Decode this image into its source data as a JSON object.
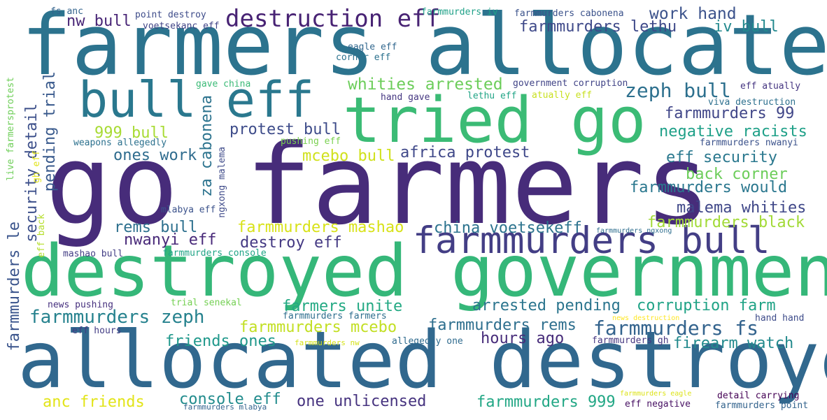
{
  "words": [
    {
      "text": "farmers allocated",
      "color": "#2c738e"
    },
    {
      "text": "go farmers",
      "color": "#472c7a"
    },
    {
      "text": "tried go",
      "color": "#3bbb75"
    },
    {
      "text": "destroyed government",
      "color": "#35b779"
    },
    {
      "text": "allocated destroyed",
      "color": "#31688e"
    },
    {
      "text": "bull eff",
      "color": "#2a788e"
    },
    {
      "text": "farmmurders bull",
      "color": "#433e85"
    },
    {
      "text": "destruction eff",
      "color": "#482374"
    },
    {
      "text": "zeph bull",
      "color": "#2d708e"
    },
    {
      "text": "work hand",
      "color": "#3b528b"
    },
    {
      "text": "farmmurders lethu",
      "color": "#3e4989"
    },
    {
      "text": "iv bull",
      "color": "#23898e"
    },
    {
      "text": "nw bull",
      "color": "#482576"
    },
    {
      "text": "whities arrested",
      "color": "#6ccd5a"
    },
    {
      "text": "farmmurders 99",
      "color": "#404688"
    },
    {
      "text": "negative racists",
      "color": "#1fa088"
    },
    {
      "text": "protest bull",
      "color": "#3e4c8a"
    },
    {
      "text": "999 bull",
      "color": "#a8db34"
    },
    {
      "text": "pending trial",
      "color": "#38598c"
    },
    {
      "text": "security detail",
      "color": "#3c4f8a"
    },
    {
      "text": "za cabonena",
      "color": "#2c738e"
    },
    {
      "text": "africa protest",
      "color": "#3f4889"
    },
    {
      "text": "ones work",
      "color": "#2f6c8e"
    },
    {
      "text": "mcebo bull",
      "color": "#d0e11c"
    },
    {
      "text": "eff security",
      "color": "#2a788e"
    },
    {
      "text": "back corner",
      "color": "#6ccd5a"
    },
    {
      "text": "farmmurders would",
      "color": "#2a778e"
    },
    {
      "text": "malema whities",
      "color": "#3f4788"
    },
    {
      "text": "farmmurders black",
      "color": "#a2da37"
    },
    {
      "text": "farmmurders le",
      "color": "#3a548c"
    },
    {
      "text": "rems bull",
      "color": "#2d708e"
    },
    {
      "text": "farmmurders mashao",
      "color": "#d8e219"
    },
    {
      "text": "china voetsekeff",
      "color": "#2c738e"
    },
    {
      "text": "nwanyi eff",
      "color": "#482979"
    },
    {
      "text": "destroy eff",
      "color": "#443983"
    },
    {
      "text": "farmmurders zeph",
      "color": "#26828e"
    },
    {
      "text": "farmers unite",
      "color": "#23a983"
    },
    {
      "text": "arrested pending",
      "color": "#2b758e"
    },
    {
      "text": "corruption farm",
      "color": "#20a386"
    },
    {
      "text": "farmmurders mcebo",
      "color": "#c2df23"
    },
    {
      "text": "farmmurders rems",
      "color": "#2e6f8e"
    },
    {
      "text": "farmmurders fs",
      "color": "#33638d"
    },
    {
      "text": "friends ones",
      "color": "#1f988b"
    },
    {
      "text": "hours ago",
      "color": "#472c7a"
    },
    {
      "text": "firearm watch",
      "color": "#238a8d"
    },
    {
      "text": "anc friends",
      "color": "#e2e418"
    },
    {
      "text": "console eff",
      "color": "#228c8d"
    },
    {
      "text": "one unlicensed",
      "color": "#46337f"
    },
    {
      "text": "farmmurders 999",
      "color": "#22a785"
    },
    {
      "text": "fs anc",
      "color": "#33638d"
    },
    {
      "text": "point destroy",
      "color": "#3e4c8a"
    },
    {
      "text": "voetsekanc eff",
      "color": "#414487"
    },
    {
      "text": "farmmurders iv",
      "color": "#1fa188"
    },
    {
      "text": "farmmurders cabonena",
      "color": "#3b528b"
    },
    {
      "text": "eagle eff",
      "color": "#31678e"
    },
    {
      "text": "corner eff",
      "color": "#2c728e"
    },
    {
      "text": "gave china",
      "color": "#3aba76"
    },
    {
      "text": "hand gave",
      "color": "#453781"
    },
    {
      "text": "lethu eff",
      "color": "#20a486"
    },
    {
      "text": "atually eff",
      "color": "#c8e020"
    },
    {
      "text": "government corruption",
      "color": "#414487"
    },
    {
      "text": "eff atually",
      "color": "#453581"
    },
    {
      "text": "viva destruction",
      "color": "#2d708e"
    },
    {
      "text": "farmmurders nwanyi",
      "color": "#3b528b"
    },
    {
      "text": "weapons allegedly",
      "color": "#2c718e"
    },
    {
      "text": "pushing eff",
      "color": "#7ad151"
    },
    {
      "text": "ngxong malema",
      "color": "#3e4a89"
    },
    {
      "text": "live farmersprotest",
      "color": "#6ece58"
    },
    {
      "text": "gh eff",
      "color": "#e1e418"
    },
    {
      "text": "eff back",
      "color": "#b5de2b"
    },
    {
      "text": "mlabya eff",
      "color": "#3b528b"
    },
    {
      "text": "farmmurders ngxong",
      "color": "#2e6e8e"
    },
    {
      "text": "mashao bull",
      "color": "#433e85"
    },
    {
      "text": "farmmurders console",
      "color": "#20a486"
    },
    {
      "text": "news pushing",
      "color": "#46307e"
    },
    {
      "text": "trial senekal",
      "color": "#75d054"
    },
    {
      "text": "farmmurders farmers",
      "color": "#2e6e8e"
    },
    {
      "text": "news destruction",
      "color": "#fde725"
    },
    {
      "text": "hand hand",
      "color": "#3e4c8a"
    },
    {
      "text": "eff hours",
      "color": "#433d84"
    },
    {
      "text": "farmmurders nw",
      "color": "#d5e21a"
    },
    {
      "text": "allegedly one",
      "color": "#2f6b8e"
    },
    {
      "text": "farmmurders gh",
      "color": "#453781"
    },
    {
      "text": "farmmurders eagle",
      "color": "#dde318"
    },
    {
      "text": "detail carrying",
      "color": "#440154"
    },
    {
      "text": "eff negative",
      "color": "#471063"
    },
    {
      "text": "farmmurders point",
      "color": "#33638d"
    },
    {
      "text": "farmmurders mlabya",
      "color": "#33638d"
    }
  ]
}
